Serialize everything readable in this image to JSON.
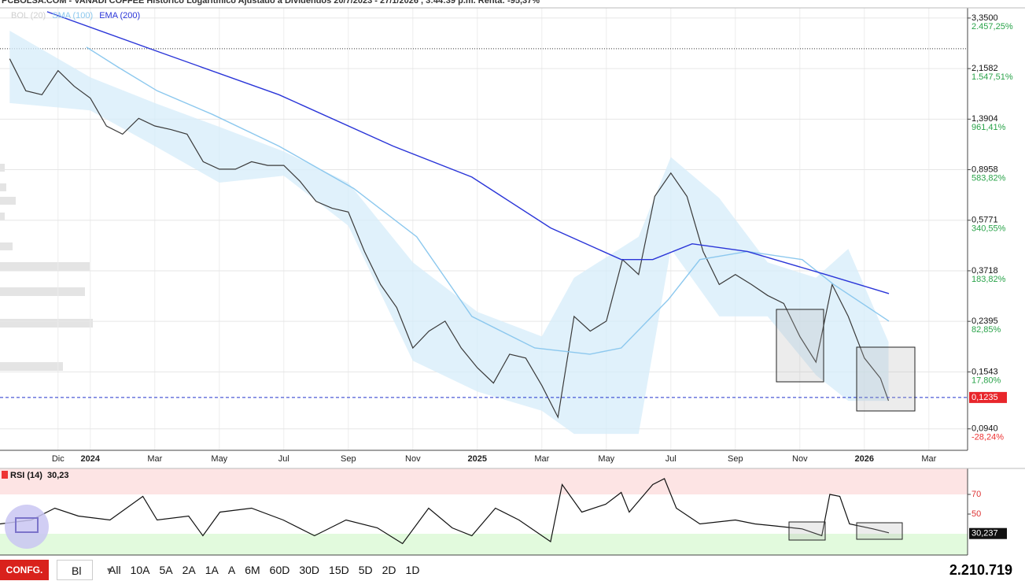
{
  "chart_data": [
    {
      "type": "line",
      "log_scale": true,
      "grid": true,
      "title": "PCBOLSA.COM - VANADI COFFEE Histórico Logarítmico Ajustado a Dividendos 20/7/2023 - 27/1/2026 , 3:44:39 p.m. Renta: -95,37%",
      "xlim": [
        -2.8,
        27.2
      ],
      "xticks": [
        {
          "value": -1,
          "label": "Dic"
        },
        {
          "value": 0,
          "label": "2024"
        },
        {
          "value": 2,
          "label": "Mar"
        },
        {
          "value": 4,
          "label": "May"
        },
        {
          "value": 6,
          "label": "Jul"
        },
        {
          "value": 8,
          "label": "Sep"
        },
        {
          "value": 10,
          "label": "Nov"
        },
        {
          "value": 12,
          "label": "2025"
        },
        {
          "value": 14,
          "label": "Mar"
        },
        {
          "value": 16,
          "label": "May"
        },
        {
          "value": 18,
          "label": "Jul"
        },
        {
          "value": 20,
          "label": "Sep"
        },
        {
          "value": 22,
          "label": "Nov"
        },
        {
          "value": 24,
          "label": "2026"
        },
        {
          "value": 26,
          "label": "Mar"
        }
      ],
      "ylim": [
        0.078,
        3.66
      ],
      "yticks": [
        {
          "value": 3.35,
          "label": "3,3500"
        },
        {
          "value": 2.1582,
          "label": "2,1582"
        },
        {
          "value": 1.3904,
          "label": "1,3904"
        },
        {
          "value": 0.8958,
          "label": "0,8958"
        },
        {
          "value": 0.5771,
          "label": "0,5771"
        },
        {
          "value": 0.3718,
          "label": "0,3718"
        },
        {
          "value": 0.2395,
          "label": "0,2395"
        },
        {
          "value": 0.1543,
          "label": "0,1543"
        },
        {
          "value": 0.094,
          "label": "0,0940"
        }
      ],
      "y2lim": [
        0.078,
        3.66
      ],
      "y2ticks": [
        {
          "value": 3.35,
          "label": "2.457,25%"
        },
        {
          "value": 2.1582,
          "label": "1.547,51%"
        },
        {
          "value": 1.3904,
          "label": "961,41%"
        },
        {
          "value": 0.8958,
          "label": "583,82%"
        },
        {
          "value": 0.5771,
          "label": "340,55%"
        },
        {
          "value": 0.3718,
          "label": "183,82%"
        },
        {
          "value": 0.2395,
          "label": "82,85%"
        },
        {
          "value": 0.1543,
          "label": "17,80%"
        },
        {
          "value": 0.094,
          "label": "-28,24%"
        }
      ],
      "reference_line": 2.565,
      "current_value": 0.1235,
      "current_value_label": "0,1235",
      "series": [
        {
          "name": "BOL (20)",
          "color": "#d6ecfa",
          "x": [
            -2.5,
            0,
            2,
            4,
            6,
            8,
            10,
            12,
            14,
            15,
            17,
            18,
            19.5,
            21,
            22.5,
            23.5,
            24.75
          ],
          "upper": [
            3.0,
            2.0,
            1.6,
            1.3,
            1.05,
            0.8,
            0.4,
            0.26,
            0.21,
            0.35,
            0.5,
            1.0,
            0.7,
            0.4,
            0.35,
            0.45,
            0.2
          ],
          "lower": [
            1.6,
            1.5,
            1.1,
            0.8,
            0.85,
            0.55,
            0.17,
            0.13,
            0.11,
            0.09,
            0.09,
            0.45,
            0.25,
            0.25,
            0.15,
            0.12,
            0.12
          ]
        },
        {
          "color": "#3a3a3a",
          "x": [
            -2.5,
            -2,
            -1.5,
            -1,
            -0.5,
            0,
            0.5,
            1,
            1.5,
            2,
            2.5,
            3,
            3.5,
            4,
            4.5,
            5,
            5.5,
            6,
            6.5,
            7,
            7.5,
            8,
            8.5,
            9,
            9.5,
            10,
            10.5,
            11,
            11.5,
            12,
            12.5,
            13,
            13.5,
            14,
            14.5,
            15,
            15.5,
            16,
            16.5,
            17,
            17.5,
            18,
            18.5,
            19,
            19.5,
            20,
            20.5,
            21,
            21.5,
            22,
            22.5,
            23,
            23.5,
            24,
            24.5,
            24.75
          ],
          "values": [
            2.35,
            1.78,
            1.72,
            2.12,
            1.85,
            1.67,
            1.31,
            1.22,
            1.4,
            1.31,
            1.27,
            1.22,
            0.96,
            0.9,
            0.9,
            0.96,
            0.93,
            0.93,
            0.81,
            0.68,
            0.64,
            0.62,
            0.44,
            0.33,
            0.27,
            0.19,
            0.22,
            0.24,
            0.19,
            0.16,
            0.14,
            0.18,
            0.174,
            0.137,
            0.104,
            0.25,
            0.22,
            0.24,
            0.41,
            0.36,
            0.71,
            0.87,
            0.71,
            0.44,
            0.33,
            0.36,
            0.33,
            0.3,
            0.28,
            0.21,
            0.168,
            0.33,
            0.25,
            0.174,
            0.146,
            0.12
          ]
        },
        {
          "name": "SMA (100)",
          "color": "#8cc8ee",
          "x": [
            -0.12,
            0.85,
            2.07,
            3.78,
            5.85,
            8.17,
            10.12,
            11.83,
            13.78,
            15.49,
            16.46,
            17.93,
            18.9,
            20.37,
            22.07,
            23.05,
            24.76
          ],
          "values": [
            2.6,
            2.19,
            1.78,
            1.45,
            1.1,
            0.76,
            0.5,
            0.25,
            0.19,
            0.18,
            0.19,
            0.29,
            0.41,
            0.44,
            0.41,
            0.33,
            0.24
          ]
        },
        {
          "name": "EMA (200)",
          "color": "#2a35d8",
          "x": [
            -1.34,
            2.07,
            5.85,
            9.39,
            11.83,
            14.27,
            16.46,
            17.44,
            18.66,
            20.37,
            22.8,
            24.76
          ],
          "values": [
            3.54,
            2.51,
            1.72,
            1.1,
            0.84,
            0.54,
            0.41,
            0.41,
            0.47,
            0.44,
            0.36,
            0.305
          ]
        }
      ]
    },
    {
      "type": "line",
      "log_scale": false,
      "grid": false,
      "title": "RSI (14)",
      "header_value": "30,23",
      "xlim": [
        -2.8,
        27.2
      ],
      "ylim": [
        8.4,
        96.4
      ],
      "yticks": [
        70,
        50
      ],
      "overbought": 70,
      "oversold": 30,
      "current_value": 30.237,
      "current_value_label": "30,237",
      "series": [
        {
          "color": "#111111",
          "x": [
            -2.8,
            -1.83,
            -1.1,
            -0.37,
            0.61,
            1.63,
            2.07,
            3.05,
            3.49,
            4.02,
            5.0,
            5.98,
            6.95,
            7.93,
            8.9,
            9.68,
            10.49,
            11.22,
            11.83,
            12.56,
            13.29,
            14.27,
            14.63,
            15.24,
            15.98,
            16.46,
            16.71,
            17.44,
            17.8,
            18.17,
            18.9,
            20.0,
            20.61,
            21.22,
            22.07,
            22.68,
            22.93,
            23.24,
            23.54,
            24.27,
            24.76
          ],
          "values": [
            40,
            44,
            56,
            48,
            44,
            68,
            44,
            48,
            28,
            52,
            56,
            44,
            28,
            44,
            36,
            20,
            56,
            36,
            28,
            56,
            44,
            22,
            80,
            52,
            60,
            72,
            52,
            80,
            86,
            56,
            40,
            44,
            40,
            38,
            35,
            28,
            70,
            68,
            40,
            35,
            31
          ]
        }
      ]
    }
  ],
  "toolbar": {
    "config": "CONFG.",
    "style": "Bl",
    "buttons": [
      "All",
      "10A",
      "5A",
      "2A",
      "1A",
      "A",
      "6M",
      "60D",
      "30D",
      "15D",
      "5D",
      "2D",
      "1D"
    ],
    "volume": "2.210.719"
  }
}
